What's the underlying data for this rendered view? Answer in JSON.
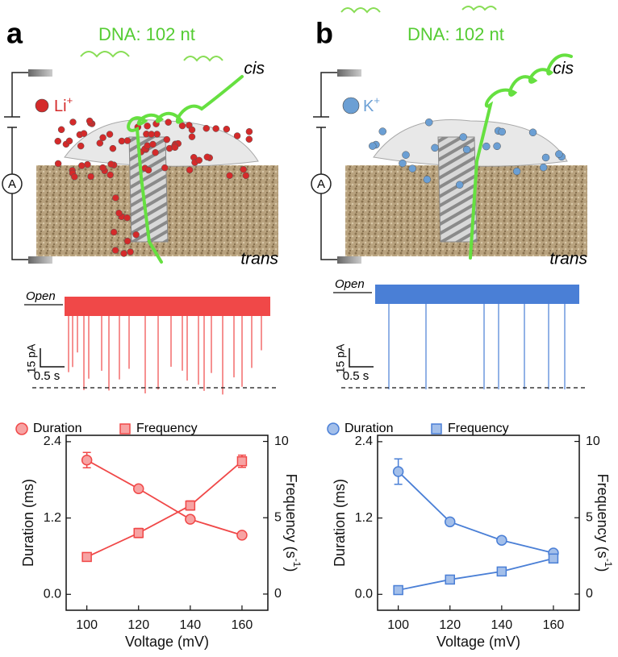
{
  "panels": [
    {
      "label": "a",
      "dna": "DNA: 102 nt",
      "cis": "cis",
      "trans": "trans",
      "ion": "Li",
      "ion_charge": "+",
      "ammeter": "A",
      "open": "Open",
      "scale_current": "15 pA",
      "scale_time": "0.5 s"
    },
    {
      "label": "b",
      "dna": "DNA: 102 nt",
      "cis": "cis",
      "trans": "trans",
      "ion": "K",
      "ion_charge": "+",
      "ammeter": "A",
      "open": "Open",
      "scale_current": "15 pA",
      "scale_time": "0.5 s"
    }
  ],
  "chart_data": [
    {
      "type": "line",
      "xlabel": "Voltage (mV)",
      "ylabel": "Duration (ms)",
      "y2label": "Frequency (s",
      "y2label_sup": "-1",
      "y2label_close": ")",
      "x": [
        100,
        120,
        140,
        160
      ],
      "xlim": [
        92,
        170
      ],
      "xticks": [
        100,
        120,
        140,
        160
      ],
      "ylim": [
        -0.25,
        2.5
      ],
      "yticks": [
        {
          "value": 0,
          "label": "0.0"
        },
        1.2,
        2.4
      ],
      "y2lim": [
        -1.06,
        10.4
      ],
      "y2ticks": [
        0,
        5,
        10
      ],
      "series": [
        {
          "name": "Duration",
          "color": "#f04848",
          "fill": "#f7a3a3",
          "marker": "circle",
          "values": [
            2.11,
            1.66,
            1.18,
            0.93
          ],
          "errors": [
            0.12,
            0.04,
            0.03,
            0.02
          ]
        },
        {
          "name": "Frequency",
          "color": "#f04848",
          "fill": "#f7a3a3",
          "marker": "square",
          "axis": "y2",
          "values": [
            2.43,
            4.0,
            5.8,
            8.7
          ],
          "errors": [
            0.15,
            0.3,
            0.3,
            0.4
          ]
        }
      ]
    },
    {
      "type": "line",
      "xlabel": "Voltage (mV)",
      "ylabel": "Duration (ms)",
      "y2label": "Frequency (s",
      "y2label_sup": "-1",
      "y2label_close": ")",
      "x": [
        100,
        120,
        140,
        160
      ],
      "xlim": [
        92,
        170
      ],
      "xticks": [
        100,
        120,
        140,
        160
      ],
      "ylim": [
        -0.25,
        2.5
      ],
      "yticks": [
        {
          "value": 0,
          "label": "0.0"
        },
        1.2,
        2.4
      ],
      "y2lim": [
        -1.06,
        10.4
      ],
      "y2ticks": [
        0,
        5,
        10
      ],
      "series": [
        {
          "name": "Duration",
          "color": "#4a7fd6",
          "fill": "#a3bfea",
          "marker": "circle",
          "values": [
            1.93,
            1.14,
            0.85,
            0.65
          ],
          "errors": [
            0.2,
            0.03,
            0.04,
            0.03
          ]
        },
        {
          "name": "Frequency",
          "color": "#4a7fd6",
          "fill": "#a3bfea",
          "marker": "square",
          "axis": "y2",
          "values": [
            0.26,
            0.95,
            1.48,
            2.33
          ],
          "errors": [
            0.1,
            0.1,
            0.12,
            0.15
          ]
        }
      ]
    }
  ]
}
